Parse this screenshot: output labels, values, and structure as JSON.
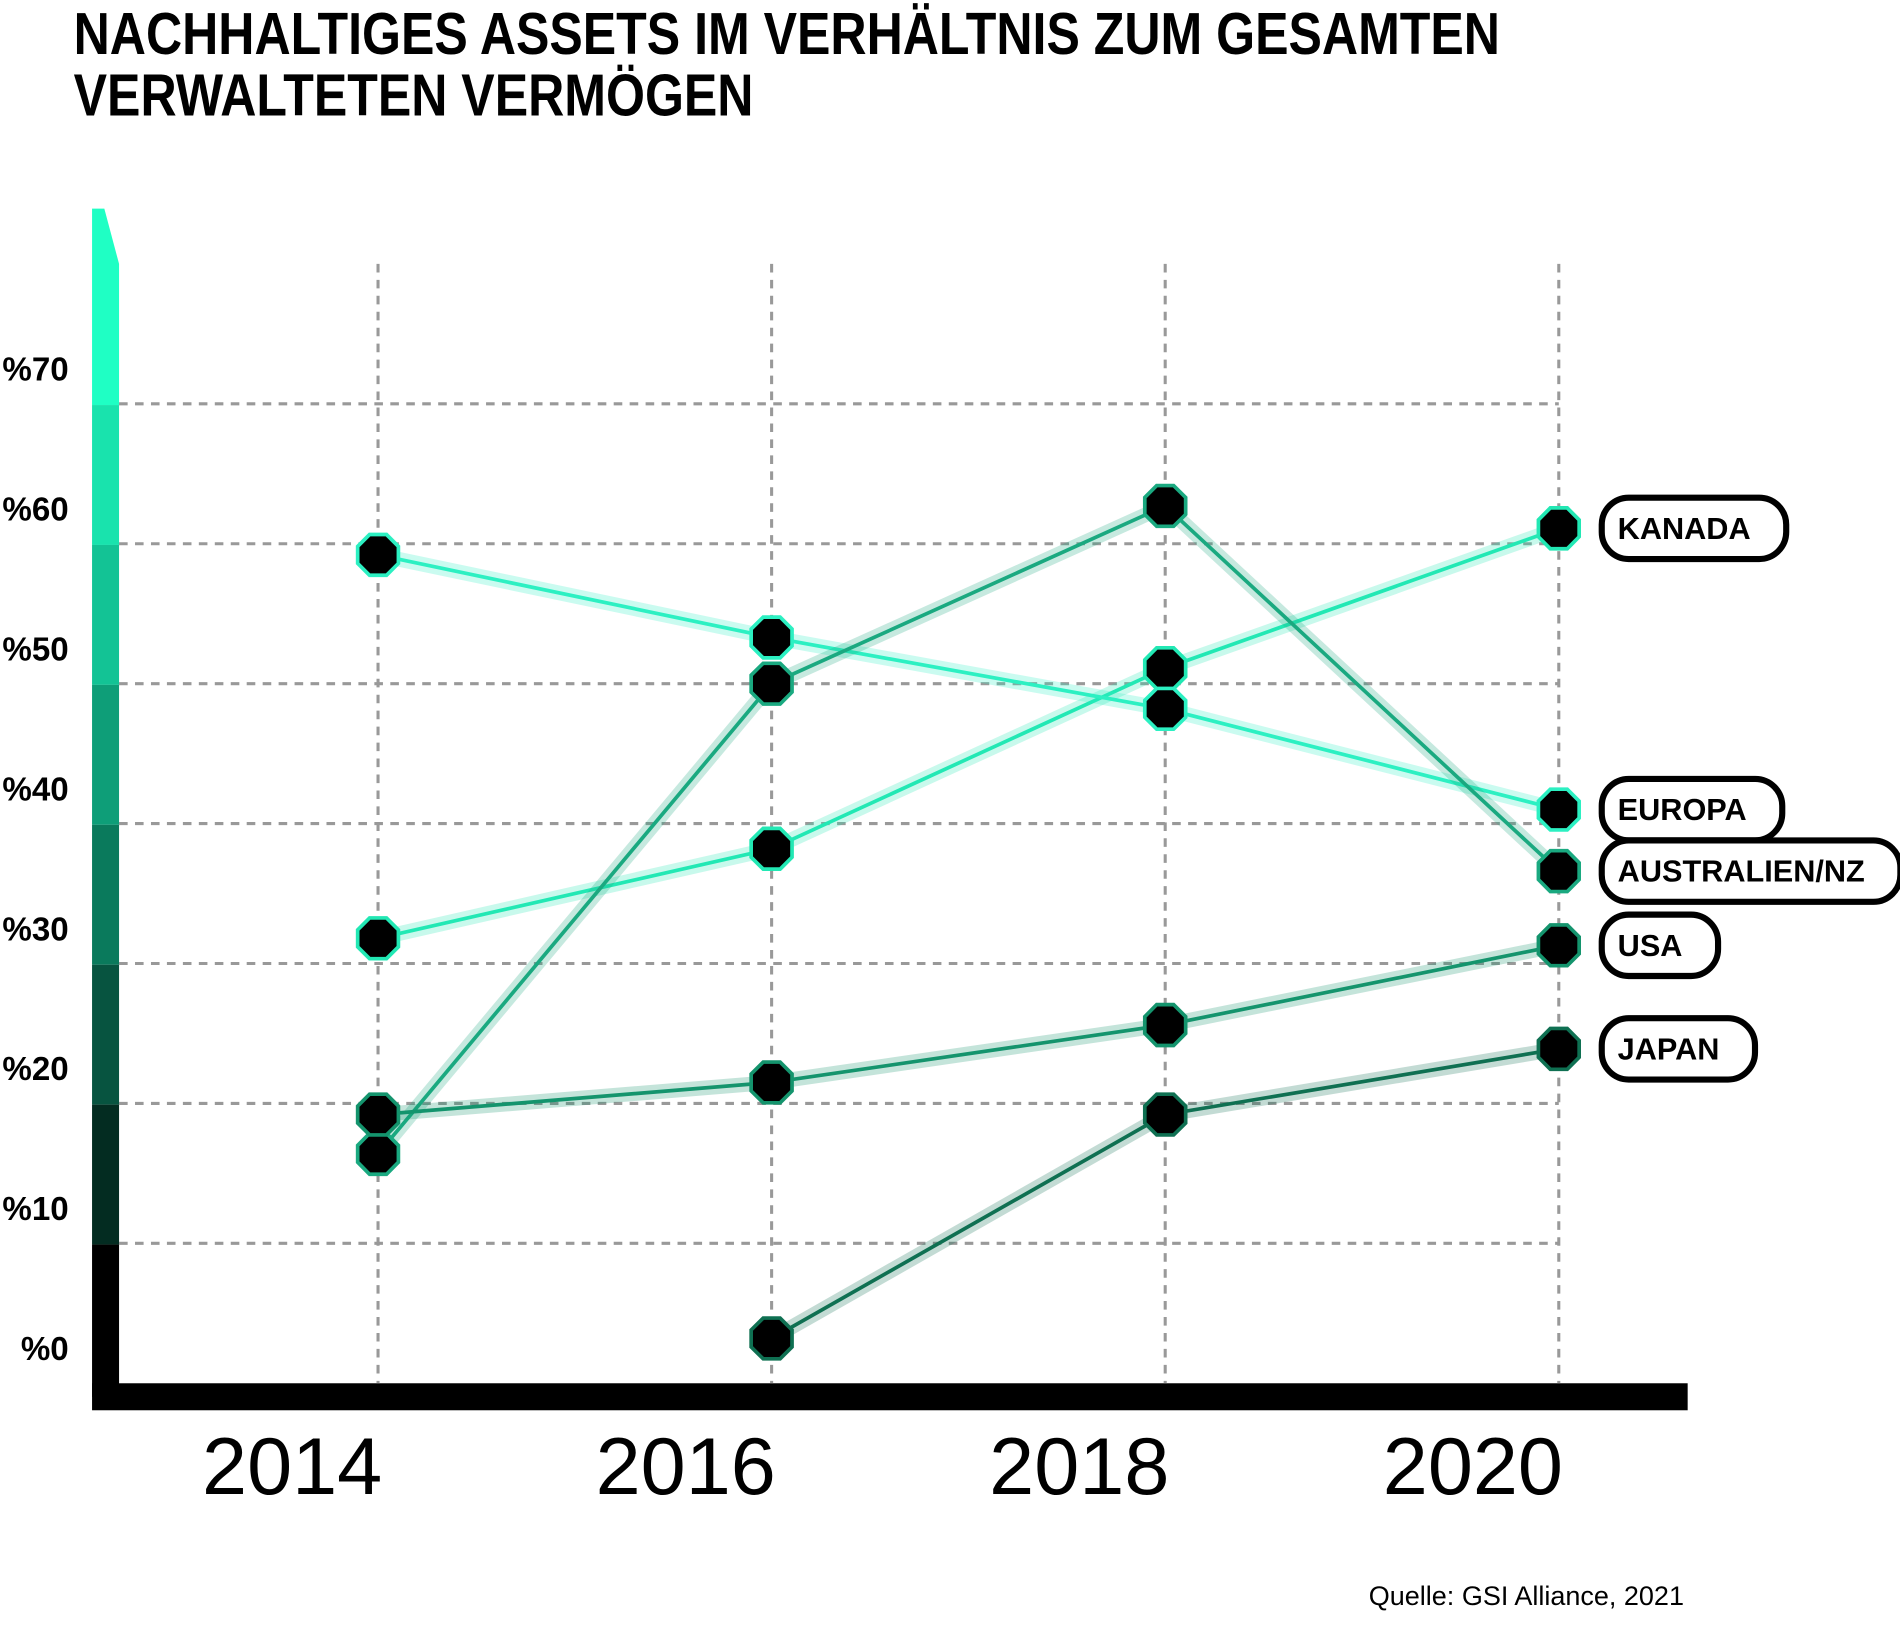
{
  "chart_data": {
    "type": "line",
    "title": "NACHHALTIGES ASSETS IM VERHÄLTNIS ZUM GESAMTEN VERWALTETEN VERMÖGEN",
    "source": "Quelle: GSI Alliance, 2021",
    "categories": [
      "2014",
      "2016",
      "2018",
      "2020"
    ],
    "series": [
      {
        "name": "KANADA",
        "color": "#22e8b4",
        "values": [
          31.8,
          38.2,
          51.1,
          61.1
        ]
      },
      {
        "name": "EUROPA",
        "color": "#2cf0c2",
        "values": [
          59.2,
          53.3,
          48.2,
          41
        ]
      },
      {
        "name": "AUSTRALIEN/NZ",
        "color": "#1aa980",
        "values": [
          16.4,
          50,
          62.7,
          36.6
        ]
      },
      {
        "name": "USA",
        "color": "#14946d",
        "values": [
          19.2,
          21.5,
          25.6,
          31.3
        ]
      },
      {
        "name": "JAPAN",
        "color": "#0f7052",
        "values": [
          null,
          3.2,
          19.2,
          23.9
        ]
      }
    ],
    "ylim": [
      0,
      84
    ],
    "yticks": [
      {
        "value": 0,
        "label": "%0"
      },
      {
        "value": 10,
        "label": "%10"
      },
      {
        "value": 20,
        "label": "%20"
      },
      {
        "value": 30,
        "label": "%30"
      },
      {
        "value": 40,
        "label": "%40"
      },
      {
        "value": 50,
        "label": "%50"
      },
      {
        "value": 60,
        "label": "%60"
      },
      {
        "value": 70,
        "label": "%70"
      }
    ],
    "grid": true
  }
}
